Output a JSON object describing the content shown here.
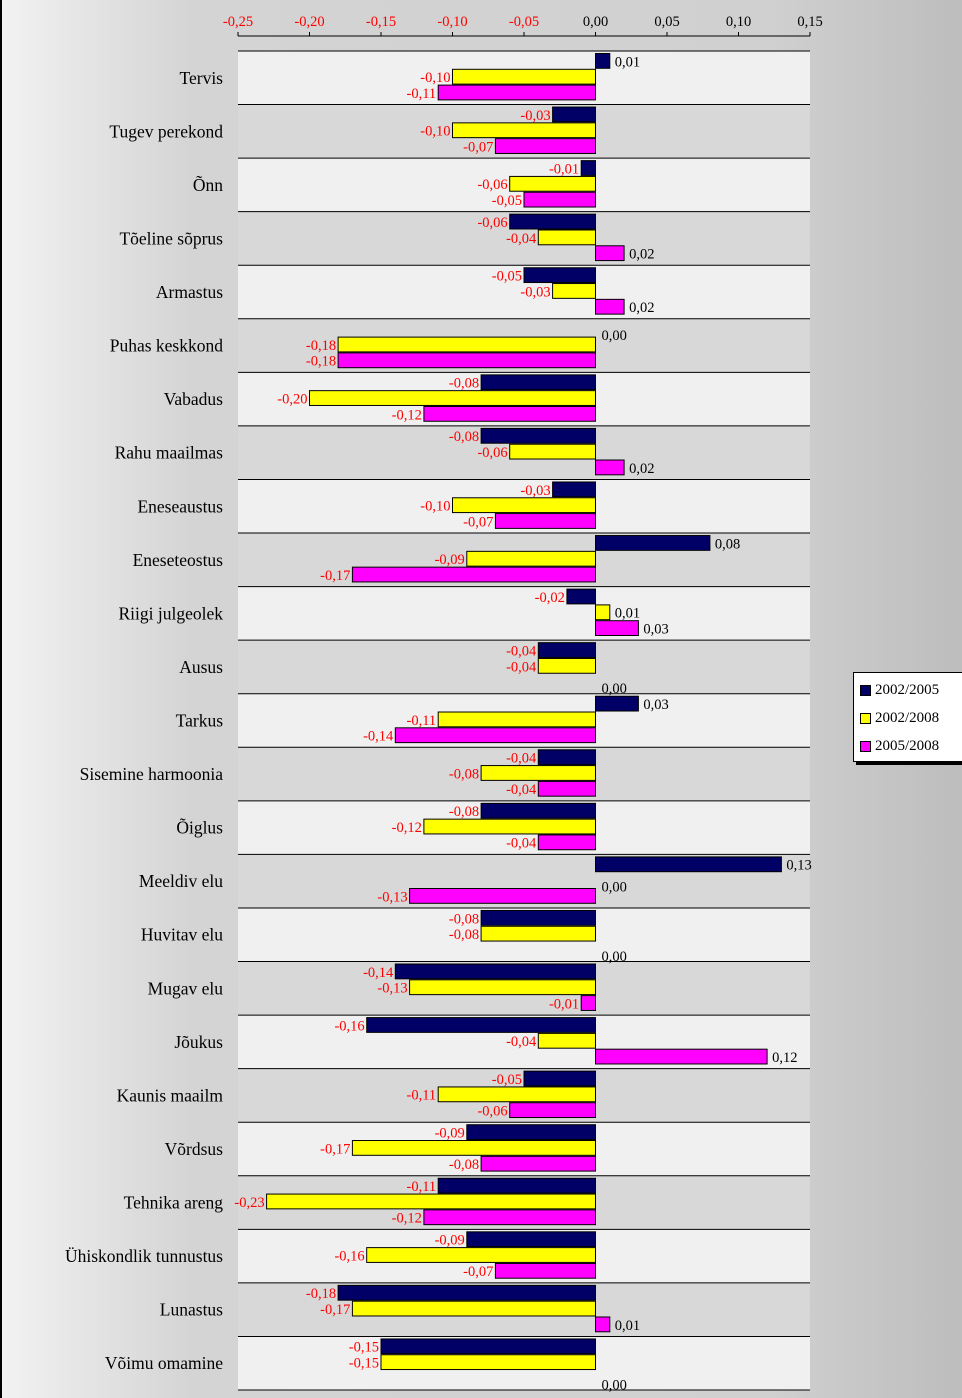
{
  "chart_data": {
    "type": "bar",
    "orientation": "horizontal",
    "title": "",
    "xlabel": "",
    "ylabel": "",
    "xlim": [
      -0.25,
      0.15
    ],
    "x_ticks": [
      "-0,25",
      "-0,20",
      "-0,15",
      "-0,10",
      "-0,05",
      "0,00",
      "0,05",
      "0,10",
      "0,15"
    ],
    "x_tick_values": [
      -0.25,
      -0.2,
      -0.15,
      -0.1,
      -0.05,
      0,
      0.05,
      0.1,
      0.15
    ],
    "legend_position": "right",
    "categories": [
      "Tervis",
      "Tugev perekond",
      "Õnn",
      "Tõeline sõprus",
      "Armastus",
      "Puhas keskkond",
      "Vabadus",
      "Rahu maailmas",
      "Eneseaustus",
      "Eneseteostus",
      "Riigi julgeolek",
      "Ausus",
      "Tarkus",
      "Sisemine harmoonia",
      "Õiglus",
      "Meeldiv elu",
      "Huvitav elu",
      "Mugav elu",
      "Jõukus",
      "Kaunis maailm",
      "Võrdsus",
      "Tehnika areng",
      "Ühiskondlik tunnustus",
      "Lunastus",
      "Võimu omamine"
    ],
    "series": [
      {
        "name": "2002/2005",
        "color": "#000066",
        "values": [
          0.01,
          -0.03,
          -0.01,
          -0.06,
          -0.05,
          0.0,
          -0.08,
          -0.08,
          -0.03,
          0.08,
          -0.02,
          -0.04,
          0.03,
          -0.04,
          -0.08,
          0.13,
          -0.08,
          -0.14,
          -0.16,
          -0.05,
          -0.09,
          -0.11,
          -0.09,
          -0.18,
          -0.15
        ],
        "labels": [
          "0,01",
          "-0,03",
          "-0,01",
          "-0,06",
          "-0,05",
          "0,00",
          "-0,08",
          "-0,08",
          "-0,03",
          "0,08",
          "-0,02",
          "-0,04",
          "0,03",
          "-0,04",
          "-0,08",
          "0,13",
          "-0,08",
          "-0,14",
          "-0,16",
          "-0,05",
          "-0,09",
          "-0,11",
          "-0,09",
          "-0,18",
          "-0,15"
        ]
      },
      {
        "name": "2002/2008",
        "color": "#ffff00",
        "values": [
          -0.1,
          -0.1,
          -0.06,
          -0.04,
          -0.03,
          -0.18,
          -0.2,
          -0.06,
          -0.1,
          -0.09,
          0.01,
          -0.04,
          -0.11,
          -0.08,
          -0.12,
          0.0,
          -0.08,
          -0.13,
          -0.04,
          -0.11,
          -0.17,
          -0.23,
          -0.16,
          -0.17,
          -0.15
        ],
        "labels": [
          "-0,10",
          "-0,10",
          "-0,06",
          "-0,04",
          "-0,03",
          "-0,18",
          "-0,20",
          "-0,06",
          "-0,10",
          "-0,09",
          "0,01",
          "-0,04",
          "-0,11",
          "-0,08",
          "-0,12",
          "0,00",
          "-0,08",
          "-0,13",
          "-0,04",
          "-0,11",
          "-0,17",
          "-0,23",
          "-0,16",
          "-0,17",
          "-0,15"
        ]
      },
      {
        "name": "2005/2008",
        "color": "#ff00ff",
        "values": [
          -0.11,
          -0.07,
          -0.05,
          0.02,
          0.02,
          -0.18,
          -0.12,
          0.02,
          -0.07,
          -0.17,
          0.03,
          0.0,
          -0.14,
          -0.04,
          -0.04,
          -0.13,
          0.0,
          -0.01,
          0.12,
          -0.06,
          -0.08,
          -0.12,
          -0.07,
          0.01,
          0.0
        ],
        "labels": [
          "-0,11",
          "-0,07",
          "-0,05",
          "0,02",
          "0,02",
          "-0,18",
          "-0,12",
          "0,02",
          "-0,07",
          "-0,17",
          "0,03",
          "0,00",
          "-0,14",
          "-0,04",
          "-0,04",
          "-0,13",
          "0,00",
          "-0,01",
          "0,12",
          "-0,06",
          "-0,08",
          "-0,12",
          "-0,07",
          "0,01",
          "0,00"
        ]
      }
    ],
    "colors": {
      "negative_label": "#ff0000",
      "positive_label": "#000000",
      "gridline": "#000000",
      "stripe_odd": "#f0f0f0",
      "stripe_even": "#d8d8d8"
    }
  }
}
